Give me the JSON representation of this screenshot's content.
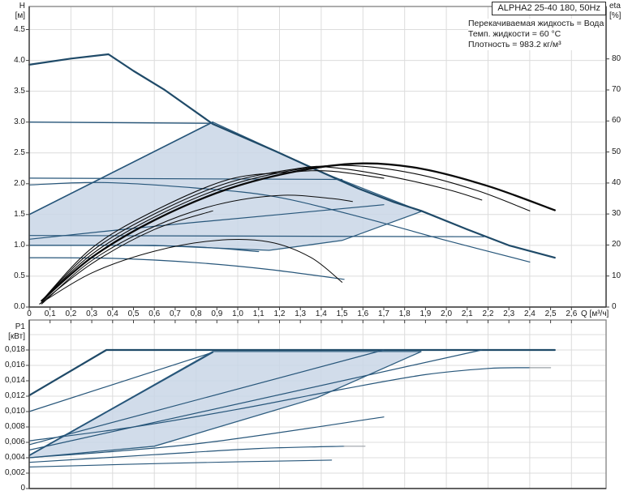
{
  "title_box": {
    "label": "ALPHA2 25-40 180, 50Hz"
  },
  "info_lines": [
    "Перекачиваемая жидкость = Вода",
    "Темп. жидкости = 60 °C",
    "Плотность = 983.2 кг/м³"
  ],
  "axis_labels": {
    "head": "H",
    "head_unit": "[м]",
    "eta": "eta",
    "eta_unit": "[%]",
    "power": "P1",
    "power_unit": "[кВт]",
    "flow": "Q [м³/ч]"
  },
  "colors": {
    "curve_blue": "#27567a",
    "curve_blue_bold": "#1f4a68",
    "curve_black": "#0a0a0a",
    "region_fill": "#c9d6e6",
    "region_stroke": "#2f5e80",
    "grid": "#dcdcdc",
    "frame": "#8a8a8a",
    "axis": "#3f3f3f",
    "tail_gray": "#9aa0a6"
  },
  "chart_data": [
    {
      "type": "line",
      "name": "head-flow-chart",
      "xlabel": "Q [м³/ч]",
      "ylabel": "H [м]",
      "y2label": "eta [%]",
      "x_range": [
        0,
        2.766
      ],
      "y_range": [
        0,
        4.875
      ],
      "y2_range": [
        0,
        96.9
      ],
      "grid": true,
      "grid_x_step": 0.2,
      "grid_y_step": 0.5,
      "x_ticks": {
        "values": [
          0,
          0.1,
          0.2,
          0.3,
          0.4,
          0.5,
          0.6,
          0.7,
          0.8,
          0.9,
          1.0,
          1.1,
          1.2,
          1.3,
          1.4,
          1.5,
          1.6,
          1.7,
          1.8,
          1.9,
          2.0,
          2.1,
          2.2,
          2.3,
          2.4,
          2.5,
          2.6
        ],
        "labels": [
          "0",
          "0,1",
          "0,2",
          "0,3",
          "0,4",
          "0,5",
          "0,6",
          "0,7",
          "0,8",
          "0,9",
          "1,0",
          "1,1",
          "1,2",
          "1,3",
          "1,4",
          "1,5",
          "1,6",
          "1,7",
          "1,8",
          "1,9",
          "2,0",
          "2,1",
          "2,2",
          "2,3",
          "2,4",
          "2,5",
          "2,6"
        ]
      },
      "y_ticks": {
        "values": [
          4.5,
          4.0,
          3.5,
          3.0,
          2.5,
          2.0,
          1.5,
          1.0,
          0.5,
          0.0
        ],
        "labels": [
          "4.5",
          "4.0",
          "3.5",
          "3.0",
          "2.5",
          "2.0",
          "1.5",
          "1.0",
          "0.5",
          "0.0"
        ]
      },
      "y2_ticks": {
        "values": [
          80,
          70,
          60,
          50,
          40,
          30,
          20,
          10,
          0
        ],
        "labels": [
          "80",
          "70",
          "60",
          "50",
          "40",
          "30",
          "20",
          "10",
          "0"
        ]
      },
      "region": {
        "name": "autoadapt-region",
        "points": [
          [
            0,
            1.5
          ],
          [
            0.88,
            3.0
          ],
          [
            1.4,
            2.19
          ],
          [
            1.88,
            1.55
          ],
          [
            1.5,
            1.08
          ],
          [
            1.15,
            0.92
          ],
          [
            0.6,
            1.0
          ],
          [
            0,
            1.0
          ]
        ]
      },
      "curves": [
        {
          "name": "max-speed-curve",
          "axis": "y",
          "width": 2.2,
          "bold": true,
          "smooth": false,
          "points": [
            [
              0,
              3.93
            ],
            [
              0.2,
              4.03
            ],
            [
              0.38,
              4.1
            ],
            [
              0.5,
              3.83
            ],
            [
              0.65,
              3.52
            ],
            [
              0.88,
              2.97
            ],
            [
              1.05,
              2.72
            ],
            [
              1.18,
              2.53
            ],
            [
              1.4,
              2.19
            ],
            [
              1.58,
              1.92
            ],
            [
              1.75,
              1.7
            ],
            [
              1.88,
              1.56
            ],
            [
              2.1,
              1.26
            ],
            [
              2.3,
              1.0
            ],
            [
              2.52,
              0.8
            ]
          ]
        },
        {
          "name": "cp-curve-3.0",
          "axis": "y",
          "width": 1.4,
          "smooth": false,
          "points": [
            [
              0,
              3.0
            ],
            [
              0.88,
              2.98
            ]
          ]
        },
        {
          "name": "cp-curve-2.1",
          "axis": "y",
          "width": 1.2,
          "smooth": false,
          "points": [
            [
              0,
              2.09
            ],
            [
              1.5,
              2.07
            ]
          ]
        },
        {
          "name": "fixed-speed-2-curve",
          "axis": "y",
          "width": 1.2,
          "smooth": true,
          "points": [
            [
              0,
              1.98
            ],
            [
              0.35,
              2.02
            ],
            [
              0.8,
              1.93
            ],
            [
              1.18,
              1.79
            ],
            [
              1.6,
              1.45
            ],
            [
              2.0,
              1.08
            ],
            [
              2.4,
              0.73
            ]
          ]
        },
        {
          "name": "pp2-control-line",
          "axis": "y",
          "width": 1.6,
          "smooth": false,
          "points": [
            [
              0,
              1.5
            ],
            [
              0.88,
              3.0
            ]
          ]
        },
        {
          "name": "pp1-control-line",
          "axis": "y",
          "width": 1.2,
          "smooth": true,
          "points": [
            [
              0,
              1.1
            ],
            [
              0.6,
              1.31
            ],
            [
              1.2,
              1.5
            ],
            [
              1.7,
              1.66
            ]
          ]
        },
        {
          "name": "cp-curve-1.15",
          "axis": "y",
          "width": 1.2,
          "smooth": false,
          "points": [
            [
              0,
              1.16
            ],
            [
              2.18,
              1.14
            ]
          ]
        },
        {
          "name": "cp-curve-1.0",
          "axis": "y",
          "width": 1.2,
          "smooth": true,
          "points": [
            [
              0,
              1.0
            ],
            [
              0.7,
              0.99
            ],
            [
              1.1,
              0.9
            ]
          ]
        },
        {
          "name": "fixed-speed-1-curve",
          "axis": "y",
          "width": 1.2,
          "smooth": true,
          "points": [
            [
              0,
              0.8
            ],
            [
              0.4,
              0.79
            ],
            [
              0.8,
              0.72
            ],
            [
              1.15,
              0.61
            ],
            [
              1.51,
              0.45
            ]
          ]
        },
        {
          "name": "eta-curve-max",
          "axis": "y2",
          "black": true,
          "width": 2.3,
          "smooth": true,
          "points": [
            [
              0.06,
              2
            ],
            [
              0.3,
              16
            ],
            [
              0.6,
              28
            ],
            [
              0.95,
              38
            ],
            [
              1.3,
              44
            ],
            [
              1.6,
              46.3
            ],
            [
              1.88,
              44.6
            ],
            [
              2.2,
              39
            ],
            [
              2.52,
              31.2
            ]
          ]
        },
        {
          "name": "eta-curve-2",
          "axis": "y2",
          "black": true,
          "width": 1.1,
          "smooth": true,
          "points": [
            [
              0.06,
              2
            ],
            [
              0.3,
              17
            ],
            [
              0.6,
              29
            ],
            [
              0.95,
              39
            ],
            [
              1.3,
              44.5
            ],
            [
              1.55,
              45.6
            ],
            [
              1.85,
              43
            ],
            [
              2.15,
              37.5
            ],
            [
              2.4,
              31
            ]
          ]
        },
        {
          "name": "eta-curve-3",
          "axis": "y2",
          "black": true,
          "width": 1.1,
          "smooth": true,
          "points": [
            [
              0.06,
              2
            ],
            [
              0.3,
              18
            ],
            [
              0.6,
              30
            ],
            [
              0.95,
              40
            ],
            [
              1.3,
              44.8
            ],
            [
              1.45,
              45
            ],
            [
              1.7,
              42.5
            ],
            [
              2.0,
              38
            ],
            [
              2.17,
              34.5
            ]
          ]
        },
        {
          "name": "eta-curve-4",
          "axis": "y2",
          "black": true,
          "width": 1.1,
          "smooth": true,
          "points": [
            [
              0.06,
              2
            ],
            [
              0.3,
              19
            ],
            [
              0.6,
              31
            ],
            [
              0.95,
              41
            ],
            [
              1.25,
              43.5
            ],
            [
              1.45,
              43.8
            ],
            [
              1.7,
              41.5
            ]
          ]
        },
        {
          "name": "eta-curve-5",
          "axis": "y2",
          "black": true,
          "width": 1.0,
          "smooth": true,
          "points": [
            [
              0.06,
              1
            ],
            [
              0.3,
              15
            ],
            [
              0.6,
              26
            ],
            [
              0.9,
              33
            ],
            [
              1.2,
              36
            ],
            [
              1.45,
              35
            ],
            [
              1.55,
              34
            ]
          ]
        },
        {
          "name": "eta-curve-speed1",
          "axis": "y2",
          "black": true,
          "width": 1.0,
          "smooth": true,
          "points": [
            [
              0.05,
              1
            ],
            [
              0.3,
              11
            ],
            [
              0.6,
              18
            ],
            [
              0.9,
              21.5
            ],
            [
              1.15,
              21
            ],
            [
              1.35,
              16
            ],
            [
              1.5,
              8
            ]
          ]
        },
        {
          "name": "eta-curve-short",
          "axis": "y2",
          "black": true,
          "width": 1.0,
          "smooth": true,
          "points": [
            [
              0.05,
              1
            ],
            [
              0.3,
              14
            ],
            [
              0.6,
              25
            ],
            [
              0.88,
              31
            ]
          ]
        }
      ]
    },
    {
      "type": "line",
      "name": "power-flow-chart",
      "xlabel": "Q [м³/ч]",
      "ylabel": "P1 [кВт]",
      "x_range": [
        0,
        2.766
      ],
      "y_range": [
        0,
        0.0219
      ],
      "grid": true,
      "grid_x_step": 0.2,
      "grid_y_step": 0.002,
      "x_ticks": {
        "values": [
          0,
          0.1,
          0.2,
          0.3,
          0.4,
          0.5,
          0.6,
          0.7,
          0.8,
          0.9,
          1.0,
          1.1,
          1.2,
          1.3,
          1.4,
          1.5,
          1.6,
          1.7,
          1.8,
          1.9,
          2.0,
          2.1,
          2.2,
          2.3,
          2.4,
          2.5,
          2.6
        ]
      },
      "y_ticks": {
        "values": [
          0.018,
          0.016,
          0.014,
          0.012,
          0.01,
          0.008,
          0.006,
          0.004,
          0.002,
          0
        ],
        "labels": [
          "0,018",
          "0,016",
          "0,014",
          "0,012",
          "0,010",
          "0,008",
          "0,006",
          "0,004",
          "0,002",
          "0"
        ]
      },
      "region": {
        "name": "autoadapt-power-region",
        "points": [
          [
            0,
            0.0043
          ],
          [
            0.88,
            0.0178
          ],
          [
            1.88,
            0.0178
          ],
          [
            1.38,
            0.0118
          ],
          [
            0.6,
            0.0055
          ],
          [
            0,
            0.004
          ]
        ]
      },
      "curves": [
        {
          "name": "power-curve-max",
          "axis": "y",
          "width": 2.2,
          "bold": true,
          "smooth": false,
          "points": [
            [
              0,
              0.0121
            ],
            [
              0.37,
              0.018
            ],
            [
              2.52,
              0.018
            ]
          ]
        },
        {
          "name": "power-curve-cp3.0",
          "axis": "y",
          "width": 1.2,
          "smooth": false,
          "points": [
            [
              0,
              0.01
            ],
            [
              0.88,
              0.0177
            ]
          ]
        },
        {
          "name": "power-curve-speed2",
          "axis": "y",
          "width": 1.2,
          "smooth": true,
          "points": [
            [
              0,
              0.0062
            ],
            [
              0.5,
              0.008
            ],
            [
              1.0,
              0.0103
            ],
            [
              1.5,
              0.0129
            ],
            [
              1.9,
              0.0148
            ],
            [
              2.2,
              0.0156
            ],
            [
              2.4,
              0.0157
            ]
          ]
        },
        {
          "name": "power-curve-cp2.1",
          "axis": "y",
          "width": 1.2,
          "smooth": false,
          "points": [
            [
              0,
              0.0057
            ],
            [
              1.7,
              0.018
            ]
          ]
        },
        {
          "name": "power-curve-cp1.15",
          "axis": "y",
          "width": 1.2,
          "smooth": false,
          "points": [
            [
              0,
              0.005
            ],
            [
              2.17,
              0.018
            ]
          ]
        },
        {
          "name": "power-curve-pp2",
          "axis": "y",
          "width": 1.8,
          "smooth": false,
          "points": [
            [
              0,
              0.0043
            ],
            [
              0.88,
              0.0177
            ]
          ]
        },
        {
          "name": "power-curve-pp1",
          "axis": "y",
          "width": 1.2,
          "smooth": true,
          "points": [
            [
              0,
              0.004
            ],
            [
              0.8,
              0.0058
            ],
            [
              1.7,
              0.0093
            ]
          ]
        },
        {
          "name": "power-curve-speed1",
          "axis": "y",
          "width": 1.2,
          "smooth": true,
          "points": [
            [
              0,
              0.0034
            ],
            [
              0.6,
              0.0044
            ],
            [
              1.1,
              0.0052
            ],
            [
              1.51,
              0.0055
            ]
          ]
        },
        {
          "name": "power-curve-min",
          "axis": "y",
          "width": 1.1,
          "smooth": true,
          "points": [
            [
              0,
              0.0028
            ],
            [
              0.7,
              0.0033
            ],
            [
              1.45,
              0.0037
            ]
          ]
        },
        {
          "name": "power-tail-speed2",
          "axis": "y",
          "gray": true,
          "width": 1.2,
          "smooth": false,
          "points": [
            [
              2.4,
              0.0157
            ],
            [
              2.5,
              0.0157
            ]
          ]
        },
        {
          "name": "power-tail-speed1",
          "axis": "y",
          "gray": true,
          "width": 1.2,
          "smooth": false,
          "points": [
            [
              1.51,
              0.0055
            ],
            [
              1.61,
              0.0055
            ]
          ]
        }
      ]
    }
  ]
}
